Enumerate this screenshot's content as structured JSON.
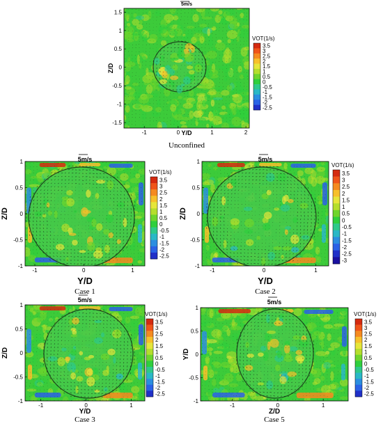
{
  "chart_data": [
    {
      "type": "heatmap",
      "caption": "Unconfined",
      "scale_label": "5m/s",
      "xlabel": "Y/D",
      "ylabel": "Z/D",
      "xlim": [
        -1.6,
        2.1
      ],
      "ylim": [
        -1.65,
        1.6
      ],
      "xticks": [
        "-1",
        "0",
        "1",
        "2"
      ],
      "yticks": [
        "1.5",
        "1",
        "0.5",
        "0",
        "-0.5",
        "-1",
        "-1.5"
      ],
      "legend_title": "VOT(1/s)",
      "legend_levels": [
        "3.5",
        "3",
        "2.5",
        "2",
        "1.5",
        "1",
        "0.5",
        "0",
        "-0.5",
        "-1",
        "-1.5",
        "-2",
        "-2.5"
      ],
      "legend_colors": [
        "#d42a10",
        "#f0541a",
        "#f58a20",
        "#f7c02a",
        "#e6e63a",
        "#b5de2c",
        "#6fd52c",
        "#2fcf3d",
        "#2ec98a",
        "#2ab8c6",
        "#2b8ee0",
        "#2a62e6",
        "#2030c8"
      ]
    },
    {
      "type": "heatmap",
      "caption": "Case 1",
      "scale_label": "5m/s",
      "xlabel": "Y/D",
      "ylabel": "Z/D",
      "xlim": [
        -1.2,
        1.25
      ],
      "ylim": [
        -1.0,
        1.0
      ],
      "xticks": [
        "-1",
        "0",
        "1"
      ],
      "yticks": [
        "1",
        "0.5",
        "0",
        "-0.5",
        "-1"
      ],
      "legend_title": "VOT(1/s)",
      "legend_levels": [
        "3.5",
        "3",
        "2.5",
        "2",
        "1.5",
        "1",
        "0.5",
        "0",
        "-0.5",
        "-1",
        "-1.5",
        "-2",
        "-2.5"
      ],
      "legend_colors": [
        "#d42a10",
        "#f0541a",
        "#f58a20",
        "#f7c02a",
        "#e6e63a",
        "#b5de2c",
        "#6fd52c",
        "#2fcf3d",
        "#2ec98a",
        "#2ab8c6",
        "#2b8ee0",
        "#2a62e6",
        "#2030c8"
      ]
    },
    {
      "type": "heatmap",
      "caption": "Case 2",
      "scale_label": "5m/s",
      "xlabel": "Y/D",
      "ylabel": "Z/D",
      "xlim": [
        -1.2,
        1.25
      ],
      "ylim": [
        -1.0,
        1.0
      ],
      "xticks": [
        "-1",
        "0",
        "1"
      ],
      "yticks": [
        "1",
        "0.5",
        "0",
        "-0.5",
        "-1"
      ],
      "legend_title": "VOT(1/s)",
      "legend_levels": [
        "3.5",
        "3",
        "2.5",
        "2",
        "1.5",
        "1",
        "0.5",
        "0",
        "-0.5",
        "-1",
        "-1.5",
        "-2",
        "-2.5",
        "-3"
      ],
      "legend_colors": [
        "#d42a10",
        "#f0541a",
        "#f58a20",
        "#f7c02a",
        "#e6e63a",
        "#b5de2c",
        "#6fd52c",
        "#2fcf3d",
        "#2ec98a",
        "#2ab8c6",
        "#2b8ee0",
        "#2a62e6",
        "#2030c8",
        "#1a10a0"
      ]
    },
    {
      "type": "heatmap",
      "caption": "Case 3",
      "scale_label": "5m/s",
      "xlabel": "Y/D",
      "ylabel": "Z/D",
      "xlim": [
        -1.35,
        1.3
      ],
      "ylim": [
        -1.0,
        1.0
      ],
      "xticks": [
        "-1",
        "0",
        "1"
      ],
      "yticks": [
        "1",
        "0.5",
        "0",
        "-0.5",
        "-1"
      ],
      "legend_title": "VOT(1/s)",
      "legend_levels": [
        "3.5",
        "3",
        "2.5",
        "2",
        "1.5",
        "1",
        "0.5",
        "0",
        "-0.5",
        "-1",
        "-1.5",
        "-2",
        "-2.5"
      ],
      "legend_colors": [
        "#d42a10",
        "#f0541a",
        "#f58a20",
        "#f7c02a",
        "#e6e63a",
        "#b5de2c",
        "#6fd52c",
        "#2fcf3d",
        "#2ec98a",
        "#2ab8c6",
        "#2b8ee0",
        "#2a62e6",
        "#2030c8"
      ]
    },
    {
      "type": "heatmap",
      "caption": "Case 5",
      "scale_label": "5m/s",
      "xlabel": "Z/D",
      "ylabel": "Y/D",
      "xlim": [
        -1.7,
        1.55
      ],
      "ylim": [
        -1.0,
        1.0
      ],
      "xticks": [
        "-1",
        "0",
        "1"
      ],
      "yticks": [
        "1",
        "0.5",
        "0",
        "-0.5",
        "-1"
      ],
      "legend_title": "VOT(1/s)",
      "legend_levels": [
        "3.5",
        "3",
        "2.5",
        "2",
        "1.5",
        "1",
        "0.5",
        "0",
        "-0.5",
        "-1",
        "-1.5",
        "-2",
        "-2.5"
      ],
      "legend_colors": [
        "#d42a10",
        "#f0541a",
        "#f58a20",
        "#f7c02a",
        "#e6e63a",
        "#b5de2c",
        "#6fd52c",
        "#2fcf3d",
        "#2ec98a",
        "#2ab8c6",
        "#2b8ee0",
        "#2a62e6",
        "#2030c8"
      ]
    }
  ]
}
